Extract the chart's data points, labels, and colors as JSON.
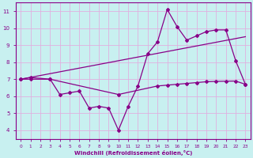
{
  "background_color": "#c8f0f0",
  "grid_color": "#e0b0e0",
  "line_color": "#880088",
  "xlabel": "Windchill (Refroidissement éolien,°C)",
  "xlim": [
    -0.5,
    23.5
  ],
  "ylim": [
    3.5,
    11.5
  ],
  "yticks": [
    4,
    5,
    6,
    7,
    8,
    9,
    10,
    11
  ],
  "xticks": [
    0,
    1,
    2,
    3,
    4,
    5,
    6,
    7,
    8,
    9,
    10,
    11,
    12,
    13,
    14,
    15,
    16,
    17,
    18,
    19,
    20,
    21,
    22,
    23
  ],
  "series1_x": [
    0,
    1,
    3,
    4,
    5,
    6,
    7,
    8,
    9,
    10,
    11,
    12,
    13,
    14,
    15,
    16,
    17,
    18,
    19,
    20,
    21,
    22,
    23
  ],
  "series1_y": [
    7.0,
    7.1,
    7.0,
    6.1,
    6.2,
    6.3,
    5.3,
    5.4,
    5.3,
    4.0,
    5.4,
    6.6,
    8.5,
    9.2,
    11.1,
    10.1,
    9.3,
    9.55,
    9.8,
    9.9,
    9.9,
    8.1,
    6.7
  ],
  "series2_x": [
    0,
    23
  ],
  "series2_y": [
    7.0,
    9.5
  ],
  "series3_x": [
    0,
    1,
    3,
    10,
    14,
    15,
    16,
    17,
    18,
    19,
    20,
    21,
    22,
    23
  ],
  "series3_y": [
    7.0,
    7.0,
    7.0,
    6.1,
    6.6,
    6.65,
    6.7,
    6.75,
    6.8,
    6.85,
    6.87,
    6.88,
    6.89,
    6.7
  ],
  "figwidth": 3.2,
  "figheight": 2.0,
  "dpi": 100
}
